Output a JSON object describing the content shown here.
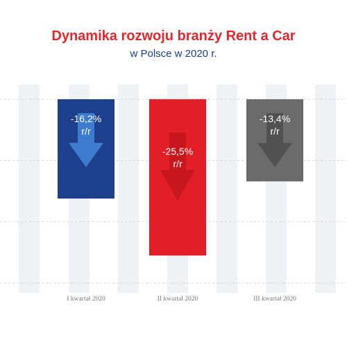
{
  "chart_data": {
    "type": "bar",
    "title": "Dynamika rozwoju branży Rent a Car",
    "subtitle": "w Polsce w 2020 r.",
    "categories": [
      "I kwartał 2020",
      "II kwartał 2020",
      "III kwartał 2020"
    ],
    "values": [
      -16.2,
      -25.5,
      -13.4
    ],
    "value_labels": [
      "-16,2%",
      "-25,5%",
      "-13,4%"
    ],
    "unit_label": "r/r",
    "ylim": [
      -30,
      0
    ],
    "grid": true,
    "legend": "none"
  },
  "colors": {
    "title": "#e0282d",
    "subtitle": "#1b3f8f",
    "bars": [
      "#1d3f8c",
      "#e21f26",
      "#6b6b6b"
    ],
    "arrows": [
      "#3f7fd0",
      "#c5171d",
      "#505050"
    ],
    "stripe": "#eef1f6",
    "gridline": "#d2d7e0",
    "tick": "#777777",
    "label_text": "#ffffff"
  }
}
